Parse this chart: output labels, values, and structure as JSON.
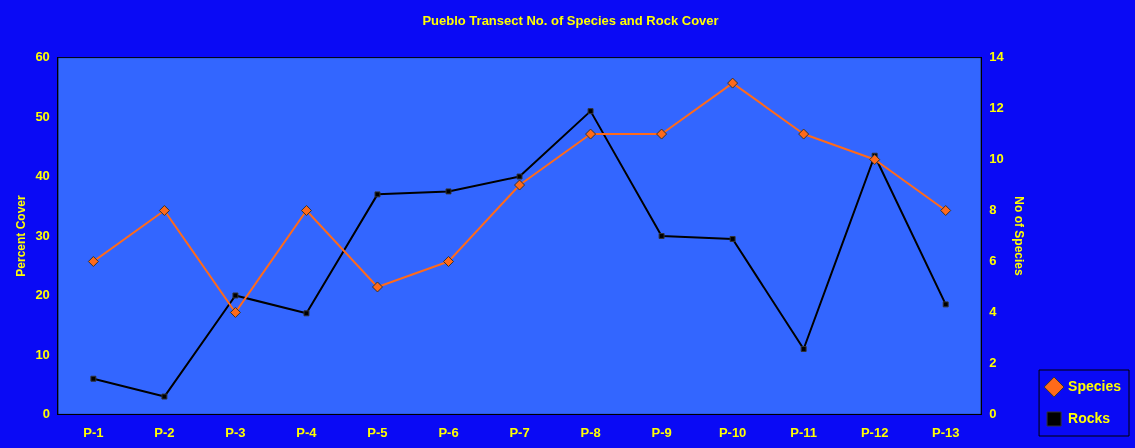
{
  "chart_data": {
    "type": "line",
    "title": "Pueblo Transect No. of Species and Rock Cover",
    "categories": [
      "P-1",
      "P-2",
      "P-3",
      "P-4",
      "P-5",
      "P-6",
      "P-7",
      "P-8",
      "P-9",
      "P-10",
      "P-11",
      "P-12",
      "P-13"
    ],
    "series": [
      {
        "name": "Rocks",
        "color": "#000000",
        "marker": "square",
        "values": [
          6,
          3,
          20,
          17,
          37,
          37.5,
          40,
          51,
          30,
          29.5,
          11,
          43.5,
          18.5
        ]
      },
      {
        "name": "Species",
        "color": "#ff6a1a",
        "marker": "diamond",
        "axis": "y2",
        "values": [
          6,
          8,
          4,
          8,
          5,
          6,
          9,
          11,
          11,
          13,
          11,
          10,
          8
        ]
      }
    ],
    "ylabel": "Percent Cover",
    "y2label": "No of Species",
    "ylim": [
      0,
      60
    ],
    "yticks": [
      0,
      10,
      20,
      30,
      40,
      50,
      60
    ],
    "y2lim": [
      0,
      14
    ],
    "y2ticks": [
      0,
      2,
      4,
      6,
      8,
      10,
      12,
      14
    ],
    "grid": false,
    "legend": "bottom right",
    "line_style": "solid"
  }
}
